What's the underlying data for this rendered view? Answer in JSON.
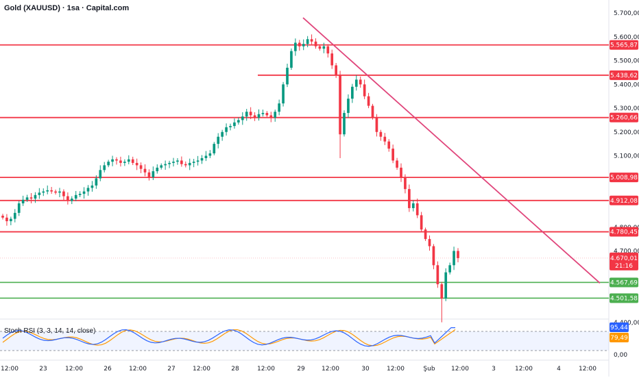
{
  "header": {
    "title": "Gold (XAUUSD) · 1sa · Capital.com"
  },
  "indicator": {
    "title": "Stoch RSI (3, 3, 14, 14, close)",
    "k_value": "95,44",
    "d_value": "79,49",
    "k_color": "#2962ff",
    "d_color": "#ff9800",
    "axis_ticks": [
      "0,00"
    ],
    "upper_band": 80,
    "lower_band": 20
  },
  "chart_data": {
    "type": "candlestick",
    "instrument": "Gold (XAUUSD)",
    "timeframe": "1sa",
    "source": "Capital.com",
    "ylim": [
      4300,
      5730
    ],
    "price_ticks": [
      "5.700,00",
      "5.600,00",
      "5.500,00",
      "5.400,00",
      "5.300,00",
      "5.200,00",
      "5.100,00",
      "4.800,00",
      "4.700,00",
      "4.400,00"
    ],
    "x_ticks": [
      "12:00",
      "23",
      "12:00",
      "26",
      "12:00",
      "27",
      "12:00",
      "28",
      "12:00",
      "29",
      "12:00",
      "30",
      "12:00",
      "Şub",
      "12:00",
      "3",
      "12:00",
      "4",
      "12:00"
    ],
    "horizontal_levels": [
      {
        "label": "5.565,87",
        "value": 5565.87,
        "color": "#f23645"
      },
      {
        "label": "5.438,62",
        "value": 5438.62,
        "color": "#f23645"
      },
      {
        "label": "5.260,66",
        "value": 5260.66,
        "color": "#f23645"
      },
      {
        "label": "5.008,98",
        "value": 5008.98,
        "color": "#f23645"
      },
      {
        "label": "4.912,08",
        "value": 4912.08,
        "color": "#f23645"
      },
      {
        "label": "4.780,45",
        "value": 4780.45,
        "color": "#f23645"
      },
      {
        "label": "4.567,69",
        "value": 4567.69,
        "color": "#4caf50"
      },
      {
        "label": "4.501,58",
        "value": 4501.58,
        "color": "#4caf50"
      }
    ],
    "current_price": {
      "label": "4.670,01",
      "value": 4670.01,
      "countdown": "21:16",
      "color": "#f23645"
    },
    "trendline": {
      "from": {
        "x_label": "29",
        "price": 5680
      },
      "to": {
        "x_label": "4",
        "price": 4565
      },
      "color": "#e0457b"
    },
    "bull_color": "#089981",
    "bear_color": "#f23645",
    "closes": [
      4840,
      4825,
      4835,
      4860,
      4900,
      4915,
      4925,
      4920,
      4935,
      4945,
      4950,
      4955,
      4950,
      4945,
      4950,
      4930,
      4910,
      4920,
      4935,
      4940,
      4950,
      4965,
      4975,
      5005,
      5040,
      5060,
      5075,
      5085,
      5080,
      5070,
      5075,
      5085,
      5070,
      5060,
      5045,
      5030,
      5010,
      5035,
      5050,
      5060,
      5065,
      5070,
      5075,
      5080,
      5065,
      5060,
      5070,
      5075,
      5080,
      5090,
      5100,
      5110,
      5150,
      5180,
      5200,
      5220,
      5225,
      5240,
      5250,
      5265,
      5285,
      5270,
      5260,
      5275,
      5280,
      5270,
      5260,
      5285,
      5320,
      5400,
      5470,
      5540,
      5575,
      5560,
      5570,
      5590,
      5580,
      5560,
      5550,
      5560,
      5530,
      5480,
      5440,
      5190,
      5280,
      5340,
      5390,
      5420,
      5400,
      5350,
      5310,
      5260,
      5200,
      5180,
      5160,
      5130,
      5080,
      5050,
      5010,
      4960,
      4880,
      4900,
      4850,
      4790,
      4750,
      4720,
      4640,
      4560,
      4500,
      4610,
      4640,
      4700,
      4670
    ]
  }
}
